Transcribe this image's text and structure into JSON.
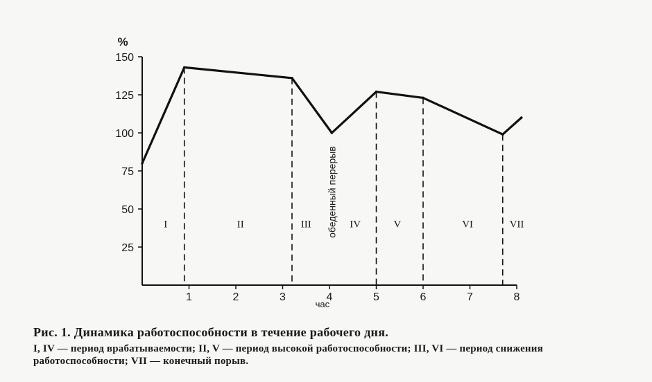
{
  "chart_data": {
    "type": "line",
    "y_unit": "%",
    "xlabel": "час",
    "x": [
      0,
      0.9,
      3.2,
      4.05,
      5.0,
      6.0,
      7.7,
      8.1
    ],
    "values": [
      80,
      143,
      136,
      100,
      127,
      123,
      99,
      110
    ],
    "xlim": [
      0,
      8
    ],
    "ylim": [
      0,
      150
    ],
    "x_ticks": [
      "1",
      "2",
      "3",
      "4",
      "5",
      "6",
      "7",
      "8"
    ],
    "x_tick_values": [
      1,
      2,
      3,
      4,
      5,
      6,
      7,
      8
    ],
    "y_ticks": [
      "25",
      "50",
      "75",
      "100",
      "125",
      "150"
    ],
    "y_tick_values": [
      25,
      50,
      75,
      100,
      125,
      150
    ],
    "boundaries": [
      0.9,
      3.2,
      5.0,
      6.0,
      7.7
    ],
    "periods": [
      {
        "label": "I",
        "x": 0.5
      },
      {
        "label": "II",
        "x": 2.1
      },
      {
        "label": "III",
        "x": 3.5
      },
      {
        "label": "IV",
        "x": 4.55
      },
      {
        "label": "V",
        "x": 5.45
      },
      {
        "label": "VI",
        "x": 6.95
      },
      {
        "label": "VII",
        "x": 8.0
      }
    ],
    "break_annotation": {
      "text": "обеденный перерыв",
      "x": 4.05
    },
    "line_color": "#111111",
    "grid": false
  },
  "caption": {
    "fig_number": "Рис. 1.",
    "title": "Динамика работоспособности в течение рабочего дня.",
    "body": "I, IV — период врабатываемости; II, V — период высокой работоспособности; III, VI — период снижения работоспособности; VII — конечный порыв."
  }
}
